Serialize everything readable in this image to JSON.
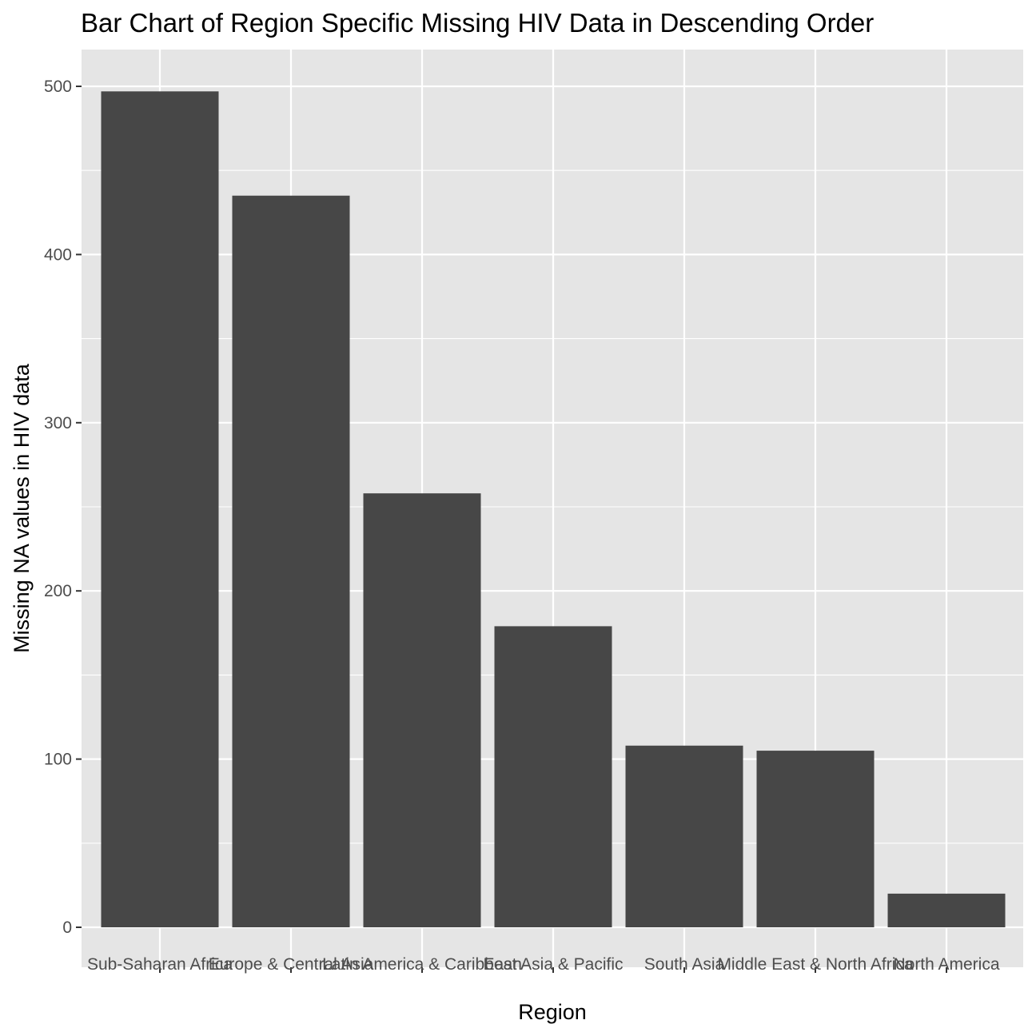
{
  "chart_data": {
    "type": "bar",
    "title": "Bar Chart of Region Specific Missing HIV Data in Descending Order",
    "xlabel": "Region",
    "ylabel": "Missing NA values in HIV data",
    "categories": [
      "Sub-Saharan Africa",
      "Europe & Central Asia",
      "Latin America & Caribbean",
      "East Asia & Pacific",
      "South Asia",
      "Middle East & North Africa",
      "North America"
    ],
    "values": [
      497,
      435,
      258,
      179,
      108,
      105,
      20
    ],
    "ylim": [
      0,
      500
    ],
    "yticks": [
      0,
      100,
      200,
      300,
      400,
      500
    ],
    "ytick_labels": [
      "0",
      "100",
      "200",
      "300",
      "400",
      "500"
    ],
    "grid": true,
    "colors": {
      "bar": "#474747",
      "panel": "#e5e5e5",
      "grid": "#ffffff",
      "tick_text": "#4d4d4d",
      "tick_mark": "#333333"
    }
  }
}
